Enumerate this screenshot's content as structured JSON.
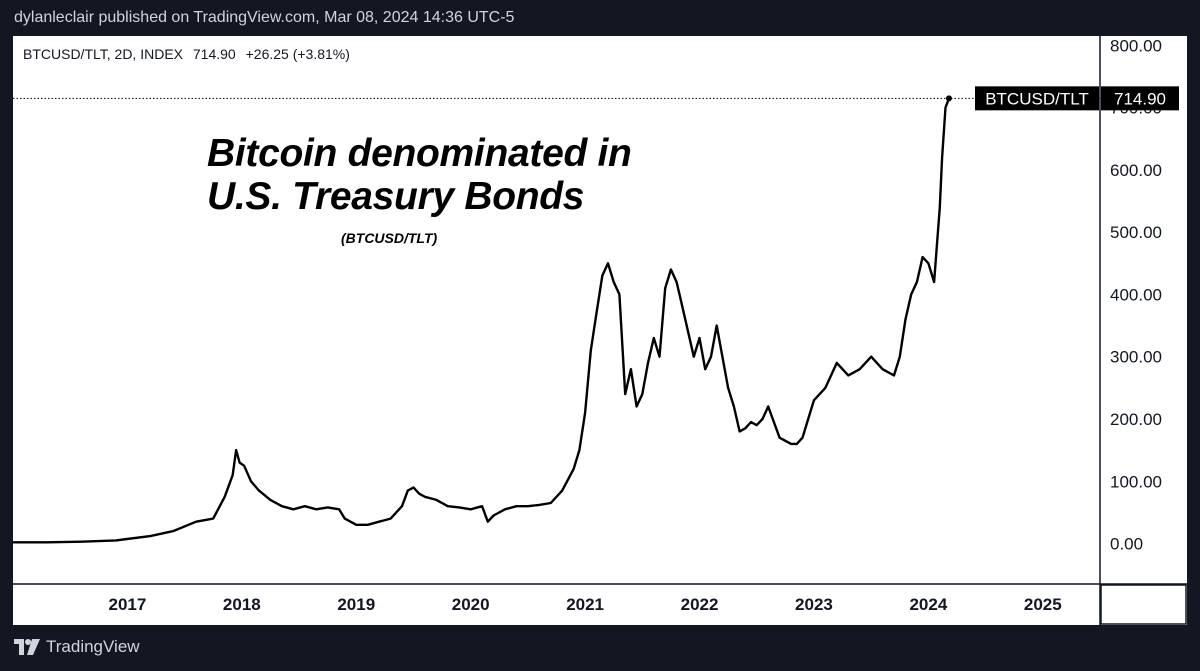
{
  "header": {
    "published": "dylanleclair published on TradingView.com, Mar 08, 2024 14:36 UTC-5"
  },
  "legend": {
    "symbol": "BTCUSD/TLT, 2D, INDEX",
    "last": "714.90",
    "change": "+26.25 (+3.81%)"
  },
  "annotation": {
    "title_line1": "Bitcoin denominated in",
    "title_line2": "U.S. Treasury Bonds",
    "subtitle": "(BTCUSD/TLT)"
  },
  "price_tag": {
    "label": "BTCUSD/TLT",
    "value": "714.90"
  },
  "footer": {
    "brand": "TradingView"
  },
  "colors": {
    "line": "#000000",
    "frame_bg": "#131722",
    "tag_bg": "#000000",
    "tag_text": "#ffffff"
  },
  "chart_data": {
    "type": "line",
    "series": [
      {
        "x": [
          2016.0,
          2016.3,
          2016.6,
          2016.9,
          2017.2,
          2017.4,
          2017.6,
          2017.75,
          2017.85,
          2017.92,
          2017.95,
          2017.98,
          2018.02,
          2018.08,
          2018.15,
          2018.25,
          2018.35,
          2018.45,
          2018.55,
          2018.65,
          2018.75,
          2018.85,
          2018.9,
          2018.95,
          2019.0,
          2019.1,
          2019.2,
          2019.3,
          2019.4,
          2019.45,
          2019.5,
          2019.55,
          2019.6,
          2019.7,
          2019.8,
          2019.9,
          2020.0,
          2020.1,
          2020.15,
          2020.2,
          2020.3,
          2020.4,
          2020.5,
          2020.6,
          2020.7,
          2020.8,
          2020.9,
          2020.95,
          2021.0,
          2021.05,
          2021.1,
          2021.15,
          2021.2,
          2021.25,
          2021.3,
          2021.35,
          2021.4,
          2021.45,
          2021.5,
          2021.55,
          2021.6,
          2021.65,
          2021.7,
          2021.75,
          2021.8,
          2021.85,
          2021.9,
          2021.95,
          2022.0,
          2022.05,
          2022.1,
          2022.15,
          2022.2,
          2022.25,
          2022.3,
          2022.35,
          2022.4,
          2022.45,
          2022.5,
          2022.55,
          2022.6,
          2022.7,
          2022.8,
          2022.85,
          2022.9,
          2022.95,
          2023.0,
          2023.1,
          2023.2,
          2023.3,
          2023.4,
          2023.5,
          2023.6,
          2023.7,
          2023.75,
          2023.8,
          2023.85,
          2023.9,
          2023.95,
          2024.0,
          2024.05,
          2024.1,
          2024.12,
          2024.15,
          2024.18
        ],
        "y": [
          2,
          2,
          3,
          5,
          12,
          20,
          35,
          40,
          75,
          110,
          150,
          130,
          125,
          100,
          85,
          70,
          60,
          55,
          60,
          55,
          58,
          55,
          40,
          35,
          30,
          30,
          35,
          40,
          60,
          85,
          90,
          80,
          75,
          70,
          60,
          58,
          55,
          60,
          35,
          45,
          55,
          60,
          60,
          62,
          65,
          85,
          120,
          150,
          210,
          310,
          370,
          430,
          450,
          420,
          400,
          240,
          280,
          220,
          240,
          290,
          330,
          300,
          410,
          440,
          420,
          380,
          340,
          300,
          330,
          280,
          300,
          350,
          300,
          250,
          220,
          180,
          185,
          195,
          190,
          200,
          220,
          170,
          160,
          160,
          170,
          200,
          230,
          250,
          290,
          270,
          280,
          300,
          280,
          270,
          300,
          360,
          400,
          420,
          460,
          450,
          420,
          540,
          620,
          700,
          715
        ]
      }
    ],
    "xlim": [
      2016.0,
      2025.5
    ],
    "ylim": [
      -65,
      815
    ],
    "x_ticks": [
      "2017",
      "2018",
      "2019",
      "2020",
      "2021",
      "2022",
      "2023",
      "2024",
      "2025"
    ],
    "y_ticks": [
      "0.00",
      "100.00",
      "200.00",
      "300.00",
      "400.00",
      "500.00",
      "600.00",
      "700.00",
      "800.00"
    ],
    "last_value": 714.9,
    "grid": false
  }
}
